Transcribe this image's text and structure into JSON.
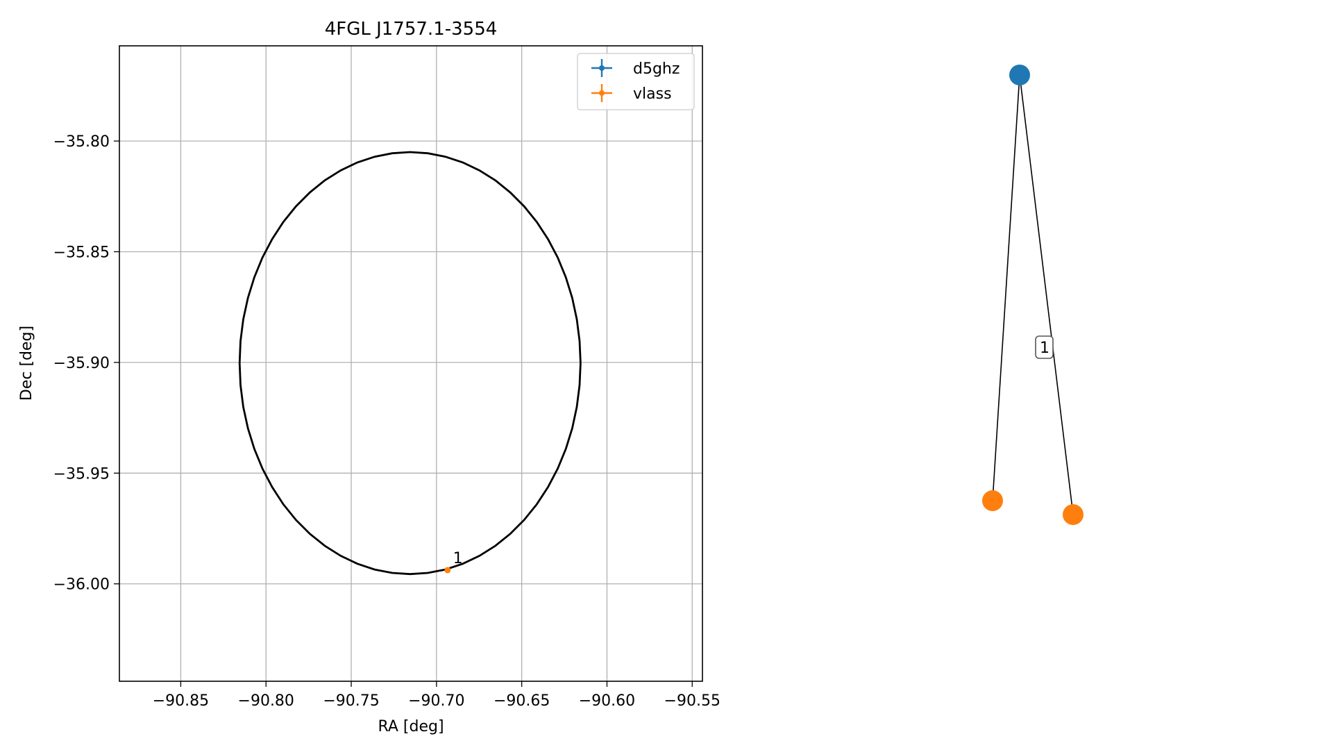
{
  "chart_data": [
    {
      "type": "scatter",
      "title": "4FGL J1757.1-3554",
      "xlabel": "RA [deg]",
      "ylabel": "Dec [deg]",
      "xlim": [
        -90.886,
        -90.544
      ],
      "ylim": [
        -36.044,
        -35.757
      ],
      "x_ticks": [
        -90.85,
        -90.8,
        -90.75,
        -90.7,
        -90.65,
        -90.6,
        -90.55
      ],
      "x_tick_labels": [
        "−90.85",
        "−90.80",
        "−90.75",
        "−90.70",
        "−90.65",
        "−90.60",
        "−90.55"
      ],
      "y_ticks": [
        -35.8,
        -35.85,
        -35.9,
        -35.95,
        -36.0
      ],
      "y_tick_labels": [
        "−35.80",
        "−35.85",
        "−35.90",
        "−35.95",
        "−36.00"
      ],
      "grid": true,
      "legend_position": "top-right",
      "series": [
        {
          "name": "d5ghz",
          "color": "#1f77b4",
          "x": [],
          "y": []
        },
        {
          "name": "vlass",
          "color": "#ff7f0e",
          "x": [
            -90.6935
          ],
          "y": [
            -35.9938
          ],
          "labels": [
            "1"
          ]
        }
      ],
      "ellipse": {
        "center": [
          -90.7155,
          -35.9003
        ],
        "ra_semi_axis": 0.1,
        "dec_semi_axis": 0.0953,
        "color": "#000000"
      }
    },
    {
      "type": "graph",
      "nodes": [
        {
          "id": "d5ghz",
          "color": "#1f77b4"
        },
        {
          "id": "vlass-a",
          "color": "#ff7f0e"
        },
        {
          "id": "vlass-b",
          "color": "#ff7f0e"
        }
      ],
      "edges": [
        {
          "from": "d5ghz",
          "to": "vlass-a",
          "label": ""
        },
        {
          "from": "d5ghz",
          "to": "vlass-b",
          "label": ""
        }
      ],
      "edge_label": "1"
    }
  ]
}
